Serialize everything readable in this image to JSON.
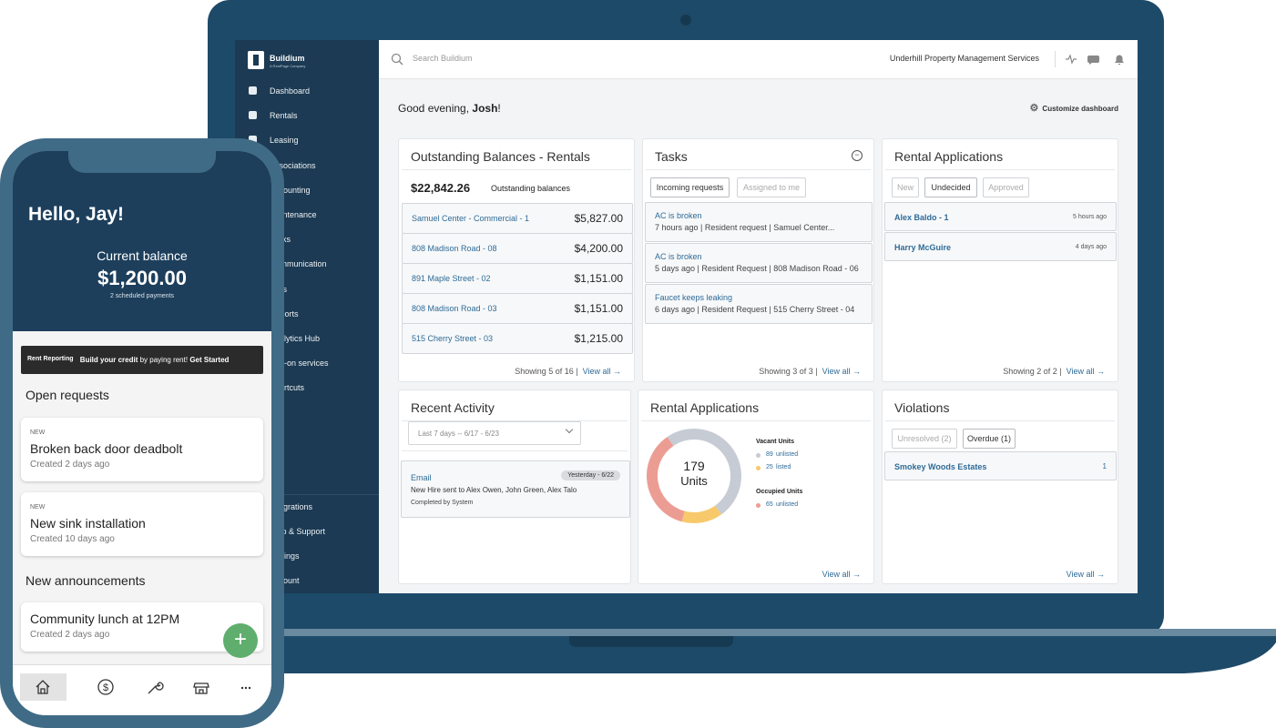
{
  "laptop": {
    "logo": {
      "name": "Buildium",
      "tagline": "A RealPage Company"
    },
    "nav": [
      "Dashboard",
      "Rentals",
      "Leasing",
      "Associations",
      "Accounting",
      "Maintenance",
      "Tasks",
      "Communication",
      "Files",
      "Reports",
      "Analytics Hub",
      "Add-on services",
      "Shortcuts"
    ],
    "nav_bottom": [
      "Integrations",
      "Help & Support",
      "Settings",
      "Account"
    ],
    "search": "Search Buildium",
    "company": "Underhill Property Management Services",
    "greeting": {
      "text": "Good evening,",
      "name": "Josh",
      "end": "!"
    },
    "customize": "Customize dashboard",
    "outstanding": {
      "title": "Outstanding Balances - Rentals",
      "total": "$22,842.26",
      "total_label": "Outstanding balances",
      "rows": [
        {
          "name": "Samuel Center - Commercial - 1",
          "amount": "$5,827.00"
        },
        {
          "name": "808 Madison Road - 08",
          "amount": "$4,200.00"
        },
        {
          "name": "891 Maple Street - 02",
          "amount": "$1,151.00"
        },
        {
          "name": "808 Madison Road - 03",
          "amount": "$1,151.00"
        },
        {
          "name": "515 Cherry Street - 03",
          "amount": "$1,215.00"
        }
      ],
      "showing": "Showing 5 of 16 |",
      "view_all": "View all →"
    },
    "tasks": {
      "title": "Tasks",
      "tabs": [
        "Incoming requests",
        "Assigned to me"
      ],
      "items": [
        {
          "title": "AC is broken",
          "detail": "7 hours ago | Resident request | Samuel Center..."
        },
        {
          "title": "AC is broken",
          "detail": "5 days ago | Resident Request | 808 Madison Road - 06"
        },
        {
          "title": "Faucet keeps leaking",
          "detail": "6 days ago | Resident Request | 515 Cherry Street - 04"
        }
      ],
      "showing": "Showing 3 of 3 |",
      "view_all": "View all →"
    },
    "applications": {
      "title": "Rental Applications",
      "tabs": [
        "New",
        "Undecided",
        "Approved"
      ],
      "rows": [
        {
          "name": "Alex Baldo - 1",
          "time": "5 hours ago"
        },
        {
          "name": "Harry McGuire",
          "time": "4 days ago"
        }
      ],
      "showing": "Showing 2 of 2 |",
      "view_all": "View all →"
    },
    "activity": {
      "title": "Recent Activity",
      "filter": "Last 7 days -- 6/17 - 6/23",
      "item": {
        "type": "Email",
        "date": "Yesterday - 6/22",
        "text": "New Hire sent to Alex Owen, John Green, Alex Talo",
        "by": "Completed by System"
      }
    },
    "applications_chart": {
      "title": "Rental Applications",
      "total": 179,
      "total_label": "Units",
      "groups": [
        {
          "name": "Vacant Units",
          "segments": [
            {
              "value": 89,
              "label": "unlisted",
              "color": "#c6cbd4"
            },
            {
              "value": 25,
              "label": "listed",
              "color": "#f7c96a"
            }
          ]
        },
        {
          "name": "Occupied Units",
          "segments": [
            {
              "value": 65,
              "label": "unlisted",
              "color": "#ec9d93"
            }
          ]
        }
      ],
      "view_all": "View all →"
    },
    "violations": {
      "title": "Violations",
      "tabs": [
        "Unresolved (2)",
        "Overdue (1)"
      ],
      "rows": [
        {
          "name": "Smokey Woods Estates",
          "count": "1"
        }
      ],
      "view_all": "View all →"
    }
  },
  "phone": {
    "greeting": "Hello, Jay!",
    "balance_label": "Current balance",
    "balance": "$1,200.00",
    "payments": "2 scheduled payments",
    "banner": {
      "logo": "Rent Reporting",
      "bold": "Build your credit",
      "text": "by paying rent!",
      "cta": "Get Started"
    },
    "requests_title": "Open requests",
    "requests": [
      {
        "tag": "NEW",
        "title": "Broken back door deadbolt",
        "sub": "Created 2 days ago"
      },
      {
        "tag": "NEW",
        "title": "New sink installation",
        "sub": "Created 10 days ago"
      }
    ],
    "announcements_title": "New announcements",
    "announcements": [
      {
        "title": "Community lunch at 12PM",
        "sub": "Created 2 days ago"
      }
    ]
  }
}
